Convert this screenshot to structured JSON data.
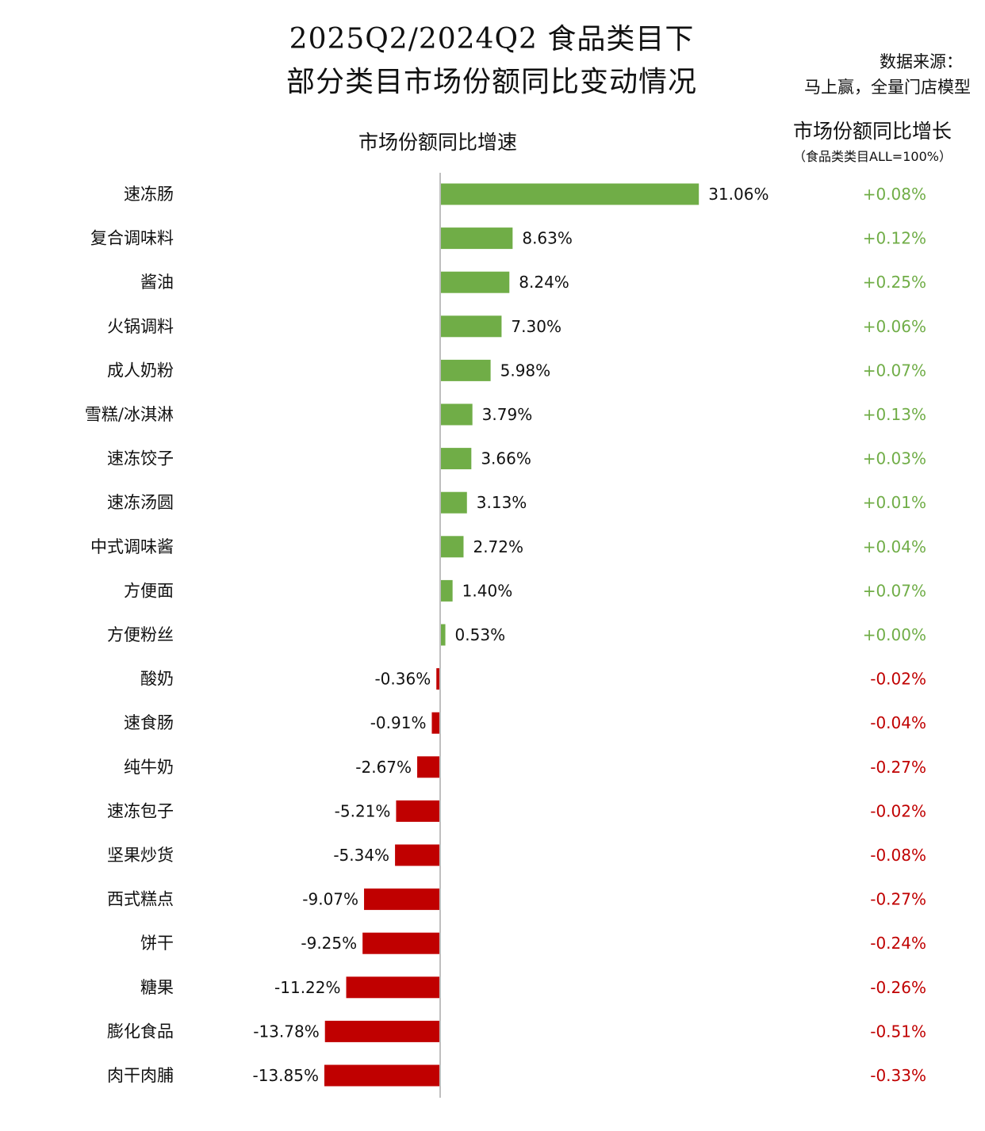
{
  "title_line1": "2025Q2/2024Q2 食品类目下",
  "title_line2": "部分类目市场份额同比变动情况",
  "source_line1": "数据来源：",
  "source_line2": "马上赢，全量门店模型",
  "colors": {
    "positive": "#70ad47",
    "negative": "#c00000",
    "axis": "#bfbfbf"
  },
  "chart_data": {
    "type": "bar",
    "orientation": "horizontal",
    "subtitle": "市场份额同比增速",
    "value_unit": "%",
    "categories": [
      "速冻肠",
      "复合调味料",
      "酱油",
      "火锅调料",
      "成人奶粉",
      "雪糕/冰淇淋",
      "速冻饺子",
      "速冻汤圆",
      "中式调味酱",
      "方便面",
      "方便粉丝",
      "酸奶",
      "速食肠",
      "纯牛奶",
      "速冻包子",
      "坚果炒货",
      "西式糕点",
      "饼干",
      "糖果",
      "膨化食品",
      "肉干肉脯"
    ],
    "values": [
      31.06,
      8.63,
      8.24,
      7.3,
      5.98,
      3.79,
      3.66,
      3.13,
      2.72,
      1.4,
      0.53,
      -0.36,
      -0.91,
      -2.67,
      -5.21,
      -5.34,
      -9.07,
      -9.25,
      -11.22,
      -13.78,
      -13.85
    ],
    "value_labels": [
      "31.06%",
      "8.63%",
      "8.24%",
      "7.30%",
      "5.98%",
      "3.79%",
      "3.66%",
      "3.13%",
      "2.72%",
      "1.40%",
      "0.53%",
      "-0.36%",
      "-0.91%",
      "-2.67%",
      "-5.21%",
      "-5.34%",
      "-9.07%",
      "-9.25%",
      "-11.22%",
      "-13.78%",
      "-13.85%"
    ],
    "secondary_column": {
      "title": "市场份额同比增长",
      "subtitle": "（食品类类目ALL=100%）",
      "values": [
        0.08,
        0.12,
        0.25,
        0.06,
        0.07,
        0.13,
        0.03,
        0.01,
        0.04,
        0.07,
        0.0,
        -0.02,
        -0.04,
        -0.27,
        -0.02,
        -0.08,
        -0.27,
        -0.24,
        -0.26,
        -0.51,
        -0.33
      ],
      "labels": [
        "+0.08%",
        "+0.12%",
        "+0.25%",
        "+0.06%",
        "+0.07%",
        "+0.13%",
        "+0.03%",
        "+0.01%",
        "+0.04%",
        "+0.07%",
        "+0.00%",
        "-0.02%",
        "-0.04%",
        "-0.27%",
        "-0.02%",
        "-0.08%",
        "-0.27%",
        "-0.24%",
        "-0.26%",
        "-0.51%",
        "-0.33%"
      ]
    },
    "legend": "none",
    "grid": false
  }
}
